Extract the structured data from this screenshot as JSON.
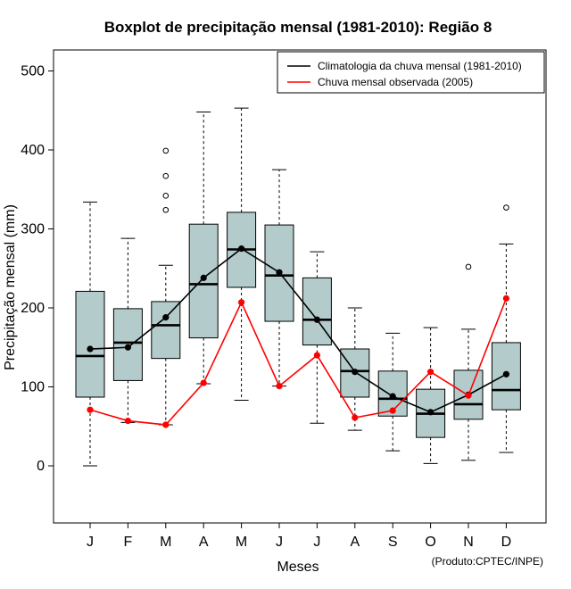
{
  "chart_data": {
    "type": "boxplot",
    "title": "Boxplot de precipitação mensal (1981-2010): Região 8",
    "xlabel": "Meses",
    "ylabel": "Precipitação mensal (mm)",
    "ylim": [
      -75,
      520
    ],
    "yticks": [
      0,
      100,
      200,
      300,
      400,
      500
    ],
    "categories": [
      "J",
      "F",
      "M",
      "A",
      "M",
      "J",
      "J",
      "A",
      "S",
      "O",
      "N",
      "D"
    ],
    "boxes": [
      {
        "min": 0,
        "q1": 87,
        "median": 139,
        "q3": 221,
        "max": 334,
        "outliers": []
      },
      {
        "min": 55,
        "q1": 108,
        "median": 156,
        "q3": 199,
        "max": 288,
        "outliers": []
      },
      {
        "min": 52,
        "q1": 136,
        "median": 178,
        "q3": 208,
        "max": 254,
        "outliers": [
          324,
          342,
          367,
          399
        ]
      },
      {
        "min": 104,
        "q1": 162,
        "median": 230,
        "q3": 306,
        "max": 448,
        "outliers": []
      },
      {
        "min": 83,
        "q1": 226,
        "median": 274,
        "q3": 321,
        "max": 453,
        "outliers": []
      },
      {
        "min": 101,
        "q1": 183,
        "median": 241,
        "q3": 305,
        "max": 375,
        "outliers": []
      },
      {
        "min": 54,
        "q1": 153,
        "median": 185,
        "q3": 238,
        "max": 271,
        "outliers": []
      },
      {
        "min": 45,
        "q1": 87,
        "median": 120,
        "q3": 148,
        "max": 200,
        "outliers": []
      },
      {
        "min": 19,
        "q1": 63,
        "median": 85,
        "q3": 120,
        "max": 168,
        "outliers": []
      },
      {
        "min": 3,
        "q1": 36,
        "median": 66,
        "q3": 97,
        "max": 175,
        "outliers": []
      },
      {
        "min": 7,
        "q1": 59,
        "median": 78,
        "q3": 121,
        "max": 173,
        "outliers": [
          252
        ]
      },
      {
        "min": 17,
        "q1": 71,
        "median": 96,
        "q3": 156,
        "max": 281,
        "outliers": [
          327
        ]
      }
    ],
    "series": [
      {
        "name": "Climatologia da chuva mensal (1981-2010)",
        "color": "#000000",
        "values": [
          148,
          150,
          188,
          238,
          275,
          245,
          185,
          119,
          88,
          68,
          90,
          116
        ]
      },
      {
        "name": "Chuva mensal observada (2005)",
        "color": "#ff0000",
        "values": [
          71,
          57,
          52,
          105,
          207,
          101,
          140,
          61,
          70,
          119,
          89,
          212
        ]
      }
    ],
    "legend_position": "top-right",
    "box_fill": "#b4cbcb",
    "credit": "(Produto:CPTEC/INPE)"
  }
}
